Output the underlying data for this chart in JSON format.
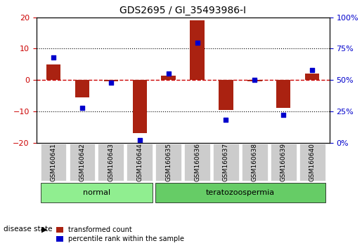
{
  "title": "GDS2695 / GI_35493986-I",
  "samples": [
    "GSM160641",
    "GSM160642",
    "GSM160643",
    "GSM160644",
    "GSM160635",
    "GSM160636",
    "GSM160637",
    "GSM160638",
    "GSM160639",
    "GSM160640"
  ],
  "transformed_count": [
    5.0,
    -5.5,
    -0.5,
    -17.0,
    1.5,
    19.0,
    -9.5,
    -0.5,
    -9.0,
    2.0
  ],
  "percentile_rank": [
    68,
    28,
    48,
    2,
    55,
    80,
    18,
    50,
    22,
    58
  ],
  "ylim_left": [
    -20,
    20
  ],
  "ylim_right": [
    0,
    100
  ],
  "yticks_left": [
    -20,
    -10,
    0,
    10,
    20
  ],
  "yticks_right": [
    0,
    25,
    50,
    75,
    100
  ],
  "groups": [
    {
      "label": "normal",
      "indices": [
        0,
        1,
        2,
        3
      ],
      "color": "#90ee90"
    },
    {
      "label": "teratozoospermia",
      "indices": [
        4,
        5,
        6,
        7,
        8,
        9
      ],
      "color": "#66cc66"
    }
  ],
  "bar_color": "#aa2211",
  "dot_color": "#0000cc",
  "zero_line_color": "#cc0000",
  "grid_color": "#000000",
  "bg_color": "#ffffff",
  "label_bg_color": "#cccccc",
  "group_bg_normal": "#90ee90",
  "group_bg_terato": "#66cc66",
  "disease_state_label": "disease state",
  "legend_bar_label": "transformed count",
  "legend_dot_label": "percentile rank within the sample"
}
